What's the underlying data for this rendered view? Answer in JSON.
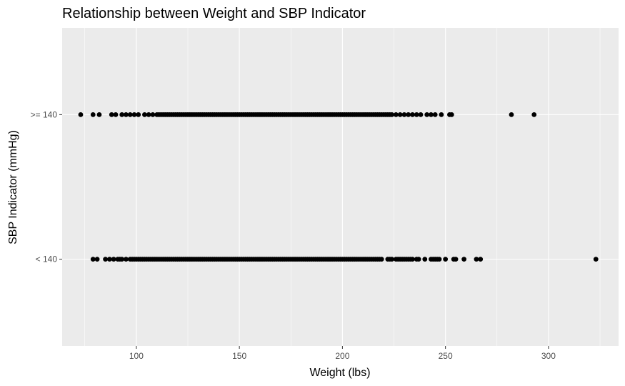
{
  "chart_data": {
    "type": "scatter",
    "title": "Relationship between Weight and SBP Indicator",
    "xlabel": "Weight (lbs)",
    "ylabel": "SBP Indicator (mmHg)",
    "xlim": [
      64,
      334
    ],
    "x_ticks": [
      100,
      150,
      200,
      250,
      300
    ],
    "categories": [
      "< 140",
      ">= 140"
    ],
    "grid": true,
    "legend": "none",
    "colors": {
      "panel": "#EBEBEB",
      "grid": "#FFFFFF",
      "point": "#000000"
    },
    "series": [
      {
        "category": ">= 140",
        "x": [
          73,
          79,
          82,
          88,
          90,
          93,
          95,
          97,
          99,
          101,
          104,
          106,
          108,
          110,
          111,
          112,
          113,
          114,
          115,
          116,
          117,
          118,
          119,
          120,
          121,
          122,
          123,
          124,
          125,
          126,
          127,
          128,
          129,
          130,
          131,
          132,
          133,
          134,
          135,
          136,
          137,
          138,
          139,
          140,
          141,
          142,
          143,
          144,
          145,
          146,
          147,
          148,
          149,
          150,
          151,
          152,
          153,
          154,
          155,
          156,
          157,
          158,
          159,
          160,
          161,
          162,
          163,
          164,
          165,
          166,
          167,
          168,
          169,
          170,
          171,
          172,
          173,
          174,
          175,
          176,
          177,
          178,
          179,
          180,
          181,
          182,
          183,
          184,
          185,
          186,
          187,
          188,
          189,
          190,
          191,
          192,
          193,
          194,
          195,
          196,
          197,
          198,
          199,
          200,
          201,
          202,
          203,
          204,
          205,
          206,
          207,
          208,
          209,
          210,
          211,
          212,
          213,
          214,
          215,
          216,
          217,
          218,
          219,
          220,
          221,
          222,
          223,
          224,
          226,
          228,
          230,
          232,
          234,
          236,
          238,
          241,
          243,
          245,
          248,
          252,
          253,
          282,
          293
        ]
      },
      {
        "category": "< 140",
        "x": [
          79,
          81,
          85,
          87,
          89,
          91,
          92,
          93,
          95,
          97,
          98,
          99,
          100,
          101,
          102,
          103,
          104,
          105,
          106,
          107,
          108,
          109,
          110,
          111,
          112,
          113,
          114,
          115,
          116,
          117,
          118,
          119,
          120,
          121,
          122,
          123,
          124,
          125,
          126,
          127,
          128,
          129,
          130,
          131,
          132,
          133,
          134,
          135,
          136,
          137,
          138,
          139,
          140,
          141,
          142,
          143,
          144,
          145,
          146,
          147,
          148,
          149,
          150,
          151,
          152,
          153,
          154,
          155,
          156,
          157,
          158,
          159,
          160,
          161,
          162,
          163,
          164,
          165,
          166,
          167,
          168,
          169,
          170,
          171,
          172,
          173,
          174,
          175,
          176,
          177,
          178,
          179,
          180,
          181,
          182,
          183,
          184,
          185,
          186,
          187,
          188,
          189,
          190,
          191,
          192,
          193,
          194,
          195,
          196,
          197,
          198,
          199,
          200,
          201,
          202,
          203,
          204,
          205,
          206,
          207,
          208,
          209,
          210,
          211,
          212,
          213,
          214,
          215,
          216,
          217,
          218,
          219,
          222,
          223,
          224,
          226,
          227,
          228,
          229,
          230,
          231,
          232,
          233,
          234,
          236,
          237,
          240,
          243,
          244,
          245,
          246,
          247,
          250,
          254,
          255,
          259,
          265,
          267,
          323
        ]
      }
    ]
  }
}
